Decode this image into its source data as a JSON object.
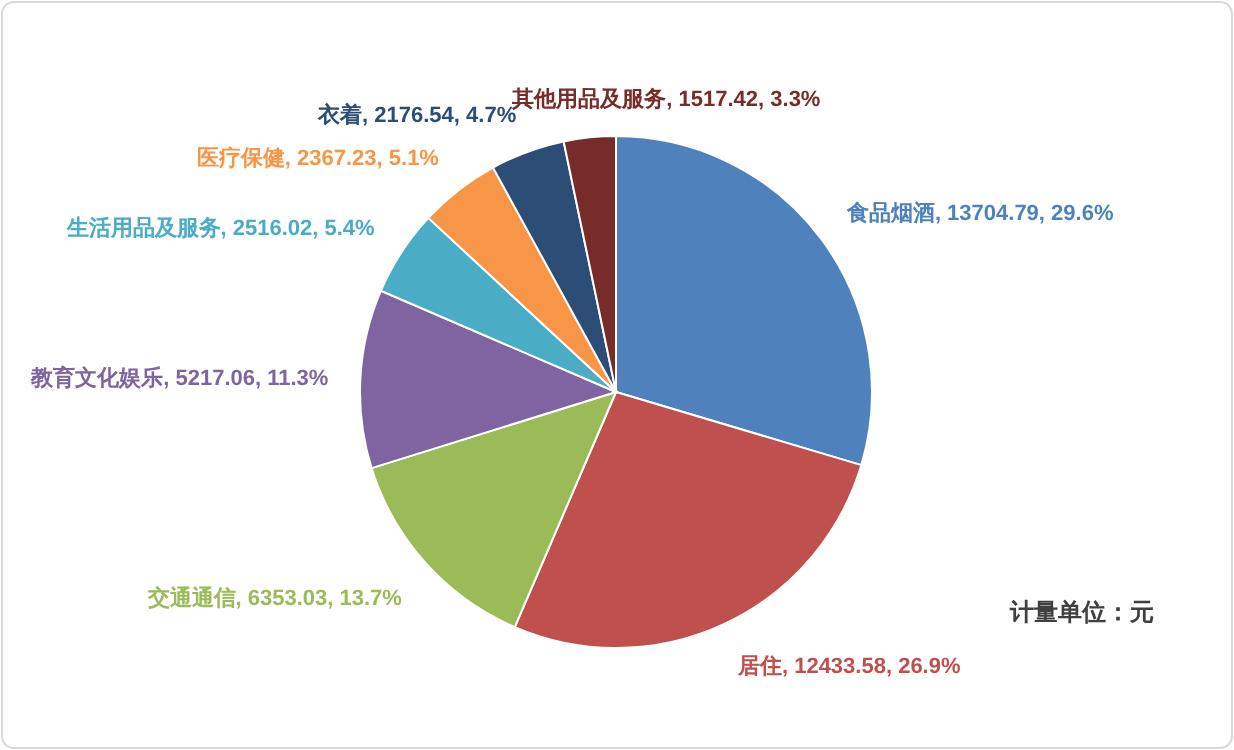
{
  "chart_data": {
    "type": "pie",
    "categories": [
      "食品烟酒",
      "居住",
      "交通通信",
      "教育文化娱乐",
      "生活用品及服务",
      "医疗保健",
      "衣着",
      "其他用品及服务"
    ],
    "values": [
      13704.79,
      12433.58,
      6353.03,
      5217.06,
      2516.02,
      2367.23,
      2176.54,
      1517.42
    ],
    "value_labels": [
      "13704.79, 29.6%",
      "12433.58, 26.9%",
      "6353.03, 13.7%",
      "5217.06, 11.3%",
      "2516.02, 5.4%",
      "2367.23, 5.1%",
      "2176.54, 4.7%",
      "1517.42, 3.3%"
    ],
    "colors": [
      "#4f81bd",
      "#c0504d",
      "#9bbb59",
      "#8064a2",
      "#4bacc6",
      "#f79646",
      "#2c4d75",
      "#772c2a"
    ],
    "annotations": [
      "计量单位：元"
    ]
  }
}
